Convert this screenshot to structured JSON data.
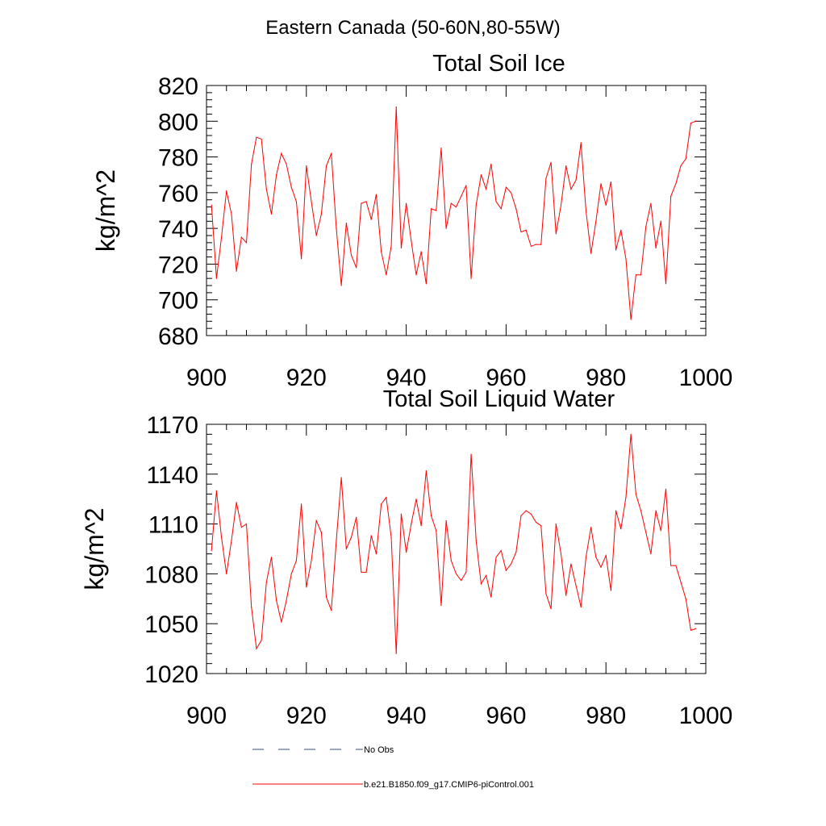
{
  "figure": {
    "title": "Eastern Canada (50-60N,80-55W)"
  },
  "colors": {
    "model_line": "#ff0000",
    "obs_line": "#3a4a7a",
    "axis": "#000000"
  },
  "legend": {
    "placement": "bottom",
    "entries": [
      {
        "label": "No Obs",
        "style": "dashed",
        "color": "#3a4a7a"
      },
      {
        "label": "b.e21.B1850.f09_g17.CMIP6-piControl.001",
        "style": "solid",
        "color": "#ff0000"
      }
    ]
  },
  "chart_data": [
    {
      "type": "line",
      "title": "Total Soil Ice",
      "xlabel": "",
      "ylabel": "kg/m^2",
      "xlim": [
        900,
        1000
      ],
      "ylim": [
        680,
        820
      ],
      "xticks": [
        900,
        920,
        940,
        960,
        980,
        1000
      ],
      "yticks": [
        680,
        700,
        720,
        740,
        760,
        780,
        800,
        820
      ],
      "grid": false,
      "series": [
        {
          "name": "b.e21.B1850.f09_g17.CMIP6-piControl.001",
          "x": [
            901,
            902,
            903,
            904,
            905,
            906,
            907,
            908,
            909,
            910,
            911,
            912,
            913,
            914,
            915,
            916,
            917,
            918,
            919,
            920,
            921,
            922,
            923,
            924,
            925,
            926,
            927,
            928,
            929,
            930,
            931,
            932,
            933,
            934,
            935,
            936,
            937,
            938,
            939,
            940,
            941,
            942,
            943,
            944,
            945,
            946,
            947,
            948,
            949,
            950,
            951,
            952,
            953,
            954,
            955,
            956,
            957,
            958,
            959,
            960,
            961,
            962,
            963,
            964,
            965,
            966,
            967,
            968,
            969,
            970,
            971,
            972,
            973,
            974,
            975,
            976,
            977,
            978,
            979,
            980,
            981,
            982,
            983,
            984,
            985,
            986,
            987,
            988,
            989,
            990,
            991,
            992,
            993,
            994,
            995,
            996,
            997,
            998
          ],
          "values": [
            753,
            712,
            735,
            761,
            748,
            716,
            735,
            732,
            776,
            791,
            790,
            762,
            748,
            770,
            782,
            776,
            763,
            755,
            723,
            775,
            755,
            736,
            748,
            775,
            782,
            740,
            708,
            743,
            725,
            718,
            754,
            755,
            745,
            759,
            727,
            714,
            730,
            808,
            729,
            754,
            733,
            714,
            727,
            709,
            751,
            750,
            785,
            740,
            754,
            752,
            758,
            764,
            712,
            753,
            770,
            762,
            776,
            755,
            751,
            763,
            760,
            751,
            738,
            739,
            730,
            731,
            731,
            768,
            777,
            737,
            753,
            775,
            762,
            767,
            788,
            750,
            726,
            744,
            765,
            753,
            766,
            728,
            739,
            723,
            689,
            714,
            714,
            741,
            754,
            729,
            744,
            709,
            758,
            765,
            775,
            779,
            799,
            800
          ]
        }
      ]
    },
    {
      "type": "line",
      "title": "Total Soil Liquid Water",
      "xlabel": "",
      "ylabel": "kg/m^2",
      "xlim": [
        900,
        1000
      ],
      "ylim": [
        1020,
        1170
      ],
      "xticks": [
        900,
        920,
        940,
        960,
        980,
        1000
      ],
      "yticks": [
        1020,
        1050,
        1080,
        1110,
        1140,
        1170
      ],
      "grid": false,
      "series": [
        {
          "name": "b.e21.B1850.f09_g17.CMIP6-piControl.001",
          "x": [
            901,
            902,
            903,
            904,
            905,
            906,
            907,
            908,
            909,
            910,
            911,
            912,
            913,
            914,
            915,
            916,
            917,
            918,
            919,
            920,
            921,
            922,
            923,
            924,
            925,
            926,
            927,
            928,
            929,
            930,
            931,
            932,
            933,
            934,
            935,
            936,
            937,
            938,
            939,
            940,
            941,
            942,
            943,
            944,
            945,
            946,
            947,
            948,
            949,
            950,
            951,
            952,
            953,
            954,
            955,
            956,
            957,
            958,
            959,
            960,
            961,
            962,
            963,
            964,
            965,
            966,
            967,
            968,
            969,
            970,
            971,
            972,
            973,
            974,
            975,
            976,
            977,
            978,
            979,
            980,
            981,
            982,
            983,
            984,
            985,
            986,
            987,
            988,
            989,
            990,
            991,
            992,
            993,
            994,
            995,
            996,
            997,
            998
          ],
          "values": [
            1094,
            1130,
            1102,
            1080,
            1100,
            1123,
            1108,
            1110,
            1060,
            1035,
            1040,
            1075,
            1090,
            1064,
            1051,
            1064,
            1080,
            1088,
            1122,
            1072,
            1088,
            1112,
            1105,
            1066,
            1058,
            1100,
            1138,
            1095,
            1102,
            1114,
            1081,
            1081,
            1103,
            1092,
            1122,
            1126,
            1102,
            1032,
            1116,
            1093,
            1110,
            1125,
            1109,
            1142,
            1115,
            1106,
            1061,
            1112,
            1088,
            1080,
            1076,
            1081,
            1152,
            1100,
            1074,
            1079,
            1066,
            1090,
            1094,
            1082,
            1086,
            1093,
            1115,
            1118,
            1116,
            1111,
            1109,
            1068,
            1059,
            1110,
            1092,
            1067,
            1086,
            1073,
            1060,
            1090,
            1108,
            1090,
            1084,
            1091,
            1070,
            1118,
            1107,
            1126,
            1164,
            1128,
            1118,
            1105,
            1092,
            1118,
            1106,
            1131,
            1085,
            1085,
            1075,
            1065,
            1046,
            1047
          ]
        }
      ]
    }
  ]
}
